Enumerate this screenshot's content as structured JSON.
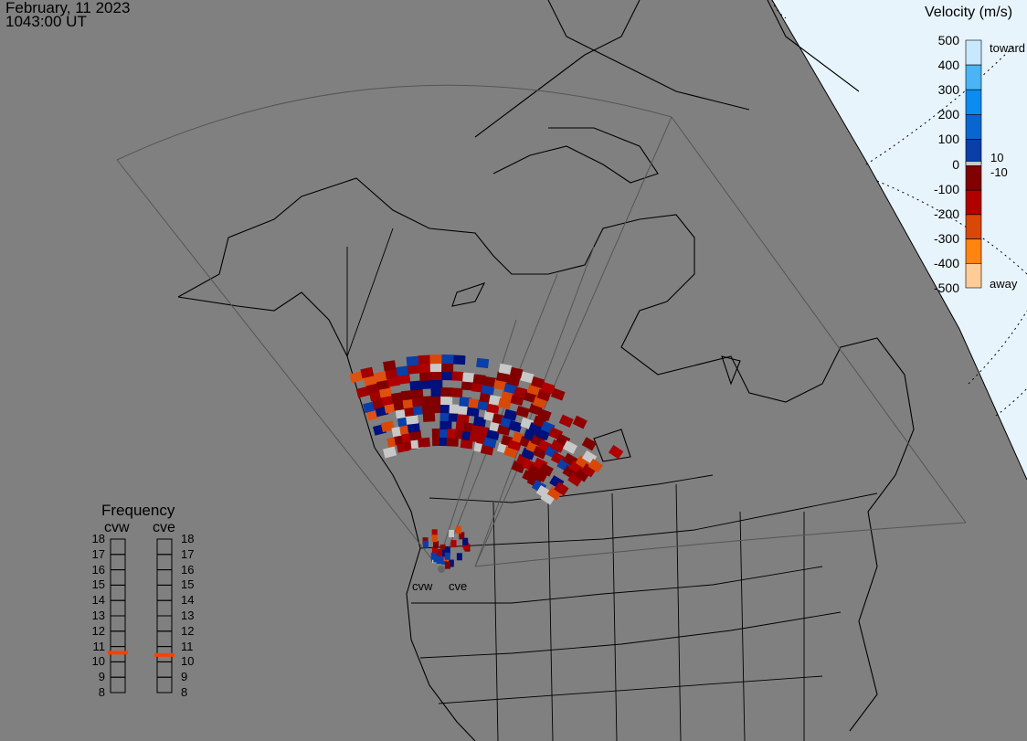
{
  "header": {
    "date": "February, 11 2023",
    "time": "1043:00 UT"
  },
  "colorbar": {
    "title": "Velocity (m/s)",
    "ticks": [
      "500",
      "400",
      "300",
      "200",
      "100",
      "0",
      "-100",
      "-200",
      "-300",
      "-400",
      "-500"
    ],
    "toward_label": "toward",
    "away_label": "away",
    "ground_scatter_upper": "10",
    "ground_scatter_lower": "-10",
    "colors": [
      "#c8e8fc",
      "#4ab4f4",
      "#0a8cf0",
      "#0866d0",
      "#0a3ea8",
      "#00107c",
      "#800000",
      "#b00000",
      "#d84808",
      "#ff8410",
      "#ffcc98"
    ],
    "ground_scatter_color": "#c8c8c8"
  },
  "frequency": {
    "title": "Frequency",
    "unit_ticks": [
      "18",
      "17",
      "16",
      "15",
      "14",
      "13",
      "12",
      "11",
      "10",
      "9",
      "8"
    ],
    "radars": [
      {
        "name": "cvw",
        "value_mhz": 10.6
      },
      {
        "name": "cve",
        "value_mhz": 10.45
      }
    ],
    "marker_color": "#ff4000"
  },
  "sites": [
    {
      "label": "cvw"
    },
    {
      "label": "cve"
    }
  ],
  "map": {
    "land_background": "#808080",
    "sunlit_region_color": "#e8f4fc",
    "outline_color": "#000000"
  }
}
